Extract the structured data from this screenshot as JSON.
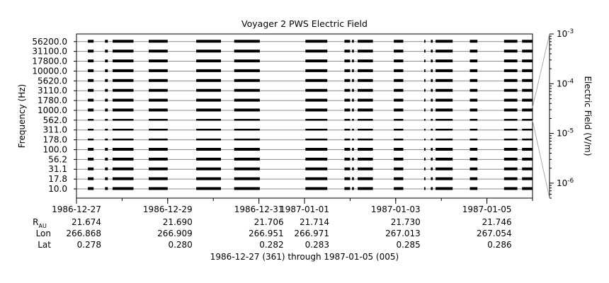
{
  "chart_data": {
    "type": "heatmap",
    "title": "Voyager 2 PWS Electric Field",
    "ylabel": "Frequency (Hz)",
    "colorbar_label": "Electric Field (V/m)",
    "colorbar_ticks": [
      {
        "value": 0.001,
        "base": "10",
        "exp": "-3"
      },
      {
        "value": 0.0001,
        "base": "10",
        "exp": "-4"
      },
      {
        "value": 1e-05,
        "base": "10",
        "exp": "-5"
      },
      {
        "value": 1e-06,
        "base": "10",
        "exp": "-6"
      }
    ],
    "colorbar_scale": "log",
    "colorbar_range": [
      5e-07,
      0.001
    ],
    "frequency_channels": [
      "56200.0",
      "31100.0",
      "17800.0",
      "10000.0",
      "5620.0",
      "3110.0",
      "1780.0",
      "1000.0",
      "562.0",
      "311.0",
      "178.0",
      "100.0",
      "56.2",
      "31.1",
      "17.8",
      "10.0"
    ],
    "x_range": [
      "1986-12-27",
      "1987-01-06"
    ],
    "x_ticks": [
      {
        "date": "1986-12-27",
        "label": "1986-12-27",
        "r_au": "21.674",
        "lon": "266.868",
        "lat": "0.278"
      },
      {
        "date": "1986-12-29",
        "label": "1986-12-29",
        "r_au": "21.690",
        "lon": "266.909",
        "lat": "0.280"
      },
      {
        "date": "1986-12-31",
        "label": "1986-12-31",
        "r_au": "21.706",
        "lon": "266.951",
        "lat": "0.282"
      },
      {
        "date": "1987-01-01",
        "label": "1987-01-01",
        "r_au": "21.714",
        "lon": "266.971",
        "lat": "0.283"
      },
      {
        "date": "1987-01-03",
        "label": "1987-01-03",
        "r_au": "21.730",
        "lon": "267.013",
        "lat": "0.285"
      },
      {
        "date": "1987-01-05",
        "label": "1987-01-05",
        "r_au": "21.746",
        "lon": "267.054",
        "lat": "0.286"
      }
    ],
    "row_labels": {
      "r_au": "R",
      "r_au_sub": "AU",
      "lon": "Lon",
      "lat": "Lat"
    },
    "xlabel": "1986-12-27 (361) through 1987-01-05 (005)",
    "data_segments": [
      {
        "start": "1986-12-27 06:00",
        "end": "1986-12-27 09:00"
      },
      {
        "start": "1986-12-27 15:00",
        "end": "1986-12-27 16:30"
      },
      {
        "start": "1986-12-27 19:00",
        "end": "1986-12-28 06:00"
      },
      {
        "start": "1986-12-28 14:00",
        "end": "1986-12-29 00:00"
      },
      {
        "start": "1986-12-29 15:00",
        "end": "1986-12-30 04:00"
      },
      {
        "start": "1986-12-30 11:00",
        "end": "1986-12-31 00:30"
      },
      {
        "start": "1987-01-01 00:30",
        "end": "1987-01-01 12:00"
      },
      {
        "start": "1987-01-01 21:00",
        "end": "1987-01-02 00:00"
      },
      {
        "start": "1987-01-02 01:00",
        "end": "1987-01-02 02:00"
      },
      {
        "start": "1987-01-02 04:00",
        "end": "1987-01-02 12:00"
      },
      {
        "start": "1987-01-02 23:00",
        "end": "1987-01-03 04:00"
      },
      {
        "start": "1987-01-03 15:00",
        "end": "1987-01-03 15:40"
      },
      {
        "start": "1987-01-03 18:30",
        "end": "1987-01-03 19:30"
      },
      {
        "start": "1987-01-03 21:00",
        "end": "1987-01-04 06:00"
      },
      {
        "start": "1987-01-04 15:00",
        "end": "1987-01-04 19:00"
      },
      {
        "start": "1987-01-05 09:00",
        "end": "1987-01-05 16:00"
      },
      {
        "start": "1987-01-05 18:30",
        "end": "1987-01-06 00:00"
      }
    ],
    "colors": {
      "data": "#000000",
      "grid": "#8c8c8c",
      "axis": "#000000"
    }
  }
}
